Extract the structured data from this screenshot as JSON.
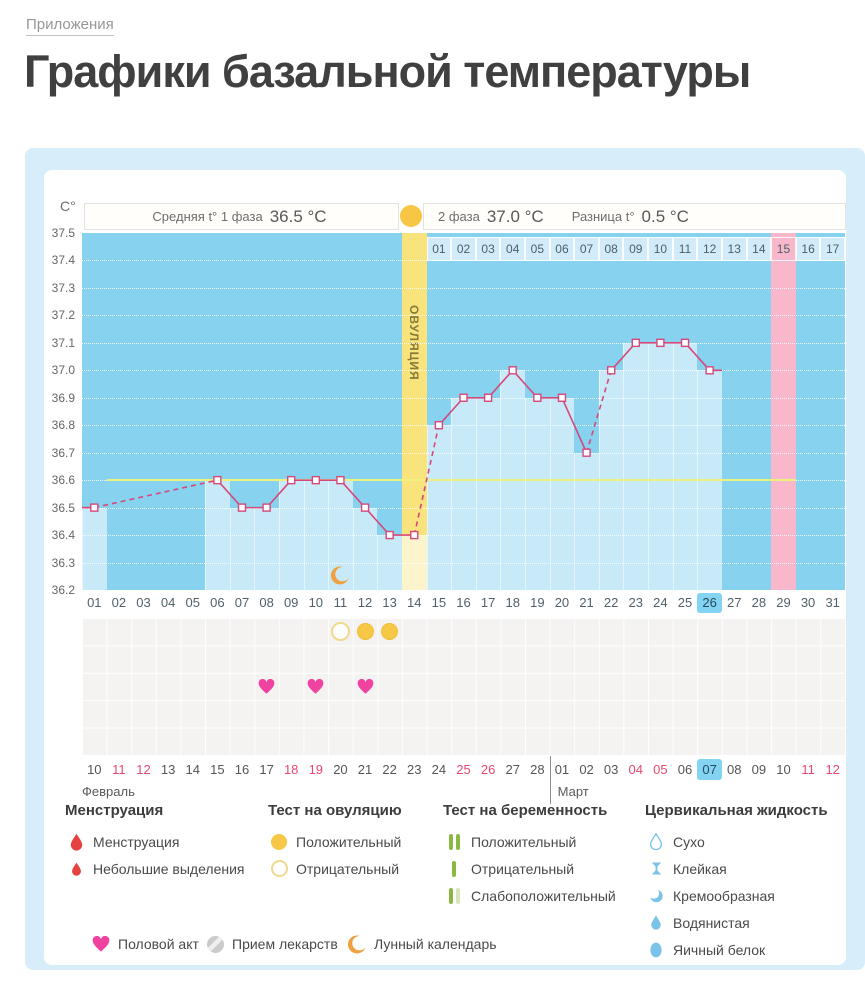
{
  "page": {
    "breadcrumb": "Приложения",
    "title": "Графики базальной температуры"
  },
  "chart_data": {
    "type": "line",
    "ylabel": "C°",
    "ylim": [
      36.2,
      37.5
    ],
    "y_ticks": [
      "37.5",
      "37.4",
      "37.3",
      "37.2",
      "37.1",
      "37.0",
      "36.9",
      "36.8",
      "36.7",
      "36.6",
      "36.5",
      "36.4",
      "36.3",
      "36.2"
    ],
    "days": [
      "01",
      "02",
      "03",
      "04",
      "05",
      "06",
      "07",
      "08",
      "09",
      "10",
      "11",
      "12",
      "13",
      "14",
      "15",
      "16",
      "17",
      "18",
      "19",
      "20",
      "21",
      "22",
      "23",
      "24",
      "25",
      "26",
      "27",
      "28",
      "29",
      "30",
      "31"
    ],
    "series": [
      {
        "name": "Базальная температура",
        "values": [
          36.5,
          null,
          null,
          null,
          null,
          36.6,
          36.5,
          36.5,
          36.6,
          36.6,
          36.6,
          36.5,
          36.4,
          36.4,
          36.8,
          36.9,
          36.9,
          37.0,
          36.9,
          36.9,
          36.7,
          37.0,
          37.1,
          37.1,
          37.1,
          37.0,
          null,
          null,
          null,
          null,
          null
        ]
      }
    ],
    "dashed_segments": [
      [
        1,
        6
      ],
      [
        14,
        15
      ],
      [
        21,
        22
      ]
    ],
    "coverline": 36.6,
    "ovulation_day": 14,
    "ovulation_label": "ОВУЛЯЦИЯ",
    "expected_period_day": 29,
    "highlighted_day": "26",
    "phase2": {
      "labels": [
        "01",
        "02",
        "03",
        "04",
        "05",
        "06",
        "07",
        "08",
        "09",
        "10",
        "11",
        "12",
        "13",
        "14",
        "15",
        "16",
        "17"
      ],
      "pink": "15"
    },
    "stats": {
      "phase1_label": "Средняя t° 1 фаза",
      "phase1_value": "36.5 °C",
      "phase2_label": "2 фаза",
      "phase2_value": "37.0 °C",
      "diff_label": "Разница t°",
      "diff_value": "0.5 °C"
    },
    "markers": {
      "ovulation_test_negative_days": [
        11
      ],
      "ovulation_test_positive_days": [
        12,
        13
      ],
      "intercourse_days": [
        8,
        10,
        12
      ],
      "moon_day": 11
    },
    "dates": {
      "feb_label": "Февраль",
      "mar_label": "Март",
      "feb": [
        "10",
        "11",
        "12",
        "13",
        "14",
        "15",
        "16",
        "17",
        "18",
        "19",
        "20",
        "21",
        "22",
        "23",
        "24",
        "25",
        "26",
        "27",
        "28"
      ],
      "mar": [
        "01",
        "02",
        "03",
        "04",
        "05",
        "06",
        "07",
        "08",
        "09",
        "10",
        "11",
        "12"
      ],
      "red_feb": [
        "11",
        "12",
        "18",
        "19",
        "25",
        "26"
      ],
      "red_mar": [
        "04",
        "05",
        "11",
        "12"
      ],
      "highlight_mar": "07"
    }
  },
  "legend": {
    "columns": [
      {
        "title": "Менструация",
        "items": [
          {
            "icon": "drop-large",
            "label": "Менструация"
          },
          {
            "icon": "drop-small",
            "label": "Небольшие выделения"
          }
        ]
      },
      {
        "title": "Тест на овуляцию",
        "items": [
          {
            "icon": "circle-filled",
            "label": "Положительный"
          },
          {
            "icon": "circle-outline",
            "label": "Отрицательный"
          }
        ]
      },
      {
        "title": "Тест на беременность",
        "items": [
          {
            "icon": "bars-two",
            "label": "Положительный"
          },
          {
            "icon": "bar-one",
            "label": "Отрицательный"
          },
          {
            "icon": "bars-weak",
            "label": "Слабоположительный"
          }
        ]
      },
      {
        "title": "Цервикальная жидкость",
        "items": [
          {
            "icon": "droplet-outline",
            "label": "Сухо"
          },
          {
            "icon": "droplet-sticky",
            "label": "Клейкая"
          },
          {
            "icon": "droplet-half",
            "label": "Кремообразная"
          },
          {
            "icon": "droplet-small",
            "label": "Водянистая"
          },
          {
            "icon": "droplet-full",
            "label": "Яичный белок"
          }
        ]
      }
    ],
    "bottom": [
      {
        "icon": "heart",
        "label": "Половой акт"
      },
      {
        "icon": "pill",
        "label": "Прием лекарств"
      },
      {
        "icon": "moon",
        "label": "Лунный календарь"
      }
    ]
  },
  "colors": {
    "card_bg": "#d7eefa",
    "plot_bg": "#87d2ee",
    "day_column": "#c8eaf8",
    "line": "#d5487a",
    "coverline": "#eff17d",
    "ovulation_band": "#f9e37d",
    "ovulation_band_pale": "#fcf4cc",
    "period_pink": "#f8b7ca",
    "highlight_blue": "#82d4f2",
    "test_yellow": "#f6c845",
    "heart_pink": "#f043a0",
    "drop_red": "#e5413e",
    "green_bar": "#8ab943",
    "fluid_blue": "#79c2e8",
    "moon_orange": "#f0a03f",
    "red_date": "#e8486e"
  }
}
